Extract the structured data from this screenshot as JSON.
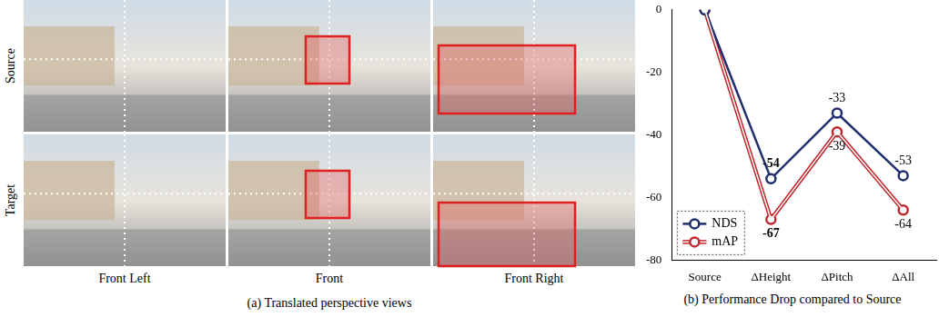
{
  "panel_a": {
    "caption": "(a) Translated perspective views",
    "rows": [
      "Source",
      "Target"
    ],
    "columns": [
      "Front Left",
      "Front",
      "Front Right"
    ]
  },
  "chart_data": {
    "type": "line",
    "title": "(b) Performance Drop compared to Source",
    "categories": [
      "Source",
      "ΔHeight",
      "ΔPitch",
      "ΔAll"
    ],
    "series": [
      {
        "name": "NDS",
        "color": "#1f2d6b",
        "marker": "circle",
        "line_style": "solid",
        "values": [
          0,
          -54,
          -33,
          -53
        ],
        "value_labels": [
          null,
          "-54",
          "-33",
          "-53"
        ]
      },
      {
        "name": "mAP",
        "color": "#c0282d",
        "marker": "circle",
        "line_style": "double",
        "values": [
          0,
          -67,
          -39,
          -64
        ],
        "value_labels": [
          null,
          "-67",
          "-39",
          "-64"
        ]
      }
    ],
    "ylim": [
      -80,
      0
    ],
    "yticks": [
      -80,
      -60,
      -40,
      -20,
      0
    ],
    "grid": false,
    "legend": "lower left",
    "data_labels": true
  }
}
